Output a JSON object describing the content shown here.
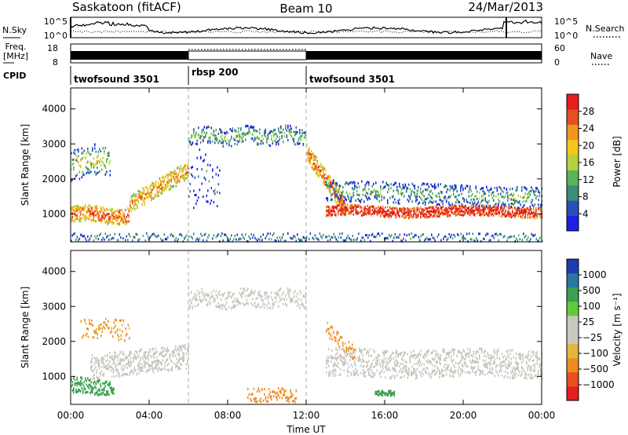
{
  "header": {
    "station": "Saskatoon (fitACF)",
    "beam": "Beam 10",
    "date": "24/Mar/2013"
  },
  "noise_panel": {
    "left_label": "N.Sky",
    "right_label": "N.Search",
    "left_ticks": [
      "10^5",
      "10^0"
    ],
    "right_ticks": [
      "10^5",
      "10^0"
    ]
  },
  "freq_panel": {
    "left_label_top": "Freq.",
    "left_label_bottom": "[MHz]",
    "right_label": "Nave",
    "left_ticks": [
      "18",
      "8"
    ],
    "right_ticks": [
      "60",
      "0"
    ]
  },
  "cpid": {
    "label": "CPID",
    "segments": [
      {
        "name": "twofsound 3501",
        "start_hour": 0,
        "end_hour": 6
      },
      {
        "name": "rbsp 200",
        "start_hour": 6,
        "end_hour": 12
      },
      {
        "name": "twofsound 3501",
        "start_hour": 12,
        "end_hour": 24
      }
    ]
  },
  "axes": {
    "x_label": "Time UT",
    "x_ticks": [
      "00:00",
      "04:00",
      "08:00",
      "12:00",
      "16:00",
      "20:00",
      "00:00"
    ],
    "x_range_hours": [
      0,
      24
    ],
    "y_label": "Slant Range [km]",
    "y_ticks": [
      "1000",
      "2000",
      "3000",
      "4000"
    ],
    "y_range_km": [
      200,
      4600
    ],
    "mode_change_hours": [
      6,
      12
    ]
  },
  "power_panel": {
    "colorbar_title": "Power [dB]",
    "colorbar_ticks": [
      "28",
      "24",
      "20",
      "16",
      "12",
      "8",
      "4"
    ],
    "colors": [
      "#1e1ee6",
      "#2750b4",
      "#3c8c78",
      "#5ab45a",
      "#b4d23c",
      "#f0c81e",
      "#f0961e",
      "#e6501e",
      "#e61e1e"
    ]
  },
  "velocity_panel": {
    "colorbar_title": "Velocity [m s⁻¹]",
    "colorbar_ticks": [
      "1000",
      "500",
      "100",
      "25",
      "−25",
      "−100",
      "−500",
      "−1000"
    ],
    "colors": [
      "#1e3cb4",
      "#2878a0",
      "#3ca050",
      "#64c83c",
      "#c8c8c0",
      "#c8c8c0",
      "#e6b43c",
      "#f08c1e",
      "#e6501e",
      "#e61e1e"
    ]
  },
  "chart_data": [
    {
      "type": "heatmap",
      "panel": "power",
      "x_unit": "hour UT",
      "y_unit": "km",
      "colorbar_range_db": [
        0,
        30
      ],
      "echo_regions": [
        {
          "desc": "low-range band",
          "x_hours": [
            0,
            3
          ],
          "range_km": [
            800,
            1200
          ],
          "power_db": 24
        },
        {
          "desc": "rising arc",
          "x_hours": [
            3,
            6
          ],
          "range_km": [
            1300,
            2400
          ],
          "power_db": 22
        },
        {
          "desc": "high-range cap",
          "x_hours": [
            6,
            12
          ],
          "range_km": [
            3000,
            3500
          ],
          "power_db": 10
        },
        {
          "desc": "descending arc",
          "x_hours": [
            12,
            14
          ],
          "range_km": [
            1200,
            2800
          ],
          "power_db": 24
        },
        {
          "desc": "steady low band",
          "x_hours": [
            14,
            24
          ],
          "range_km": [
            1000,
            1200
          ],
          "power_db": 28
        }
      ]
    },
    {
      "type": "heatmap",
      "panel": "velocity",
      "x_unit": "hour UT",
      "y_unit": "km",
      "colorbar_range_ms": [
        -1000,
        1000
      ],
      "echo_regions": [
        {
          "desc": "ground scatter",
          "x_hours": [
            1,
            6
          ],
          "range_km": [
            1000,
            1700
          ],
          "velocity_ms": 0
        },
        {
          "desc": "high-range cap",
          "x_hours": [
            6,
            12
          ],
          "range_km": [
            3000,
            3500
          ],
          "velocity_ms": 0
        },
        {
          "desc": "positive flow",
          "x_hours": [
            0,
            2
          ],
          "range_km": [
            500,
            1000
          ],
          "velocity_ms": 150
        },
        {
          "desc": "negative flow",
          "x_hours": [
            9,
            11
          ],
          "range_km": [
            300,
            700
          ],
          "velocity_ms": -200
        },
        {
          "desc": "ground scatter",
          "x_hours": [
            13,
            24
          ],
          "range_km": [
            1000,
            1800
          ],
          "velocity_ms": 0
        }
      ]
    }
  ]
}
